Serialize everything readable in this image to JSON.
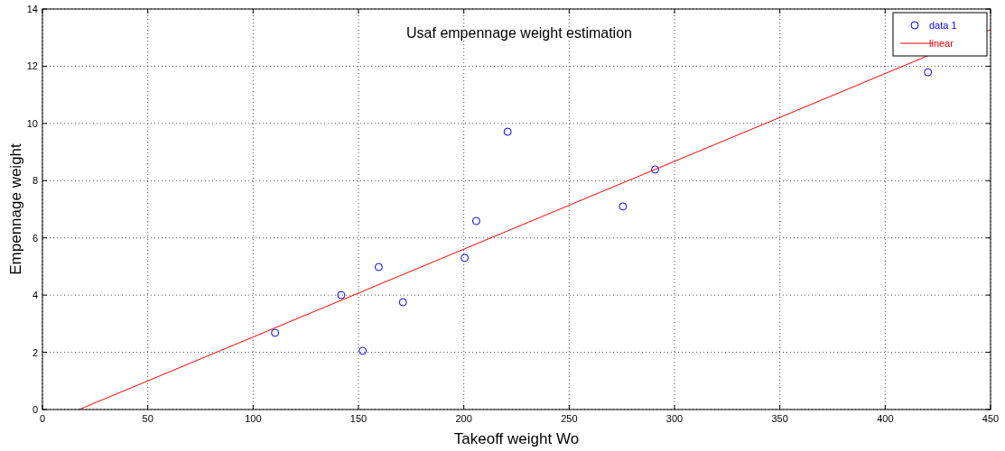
{
  "chart_data": {
    "type": "scatter",
    "title": "Usaf empennage weight estimation",
    "xlabel": "Takeoff weight Wo",
    "ylabel": "Empennage weight",
    "series": [
      {
        "name": "data 1",
        "color": "#0000ff",
        "marker": "circle",
        "x": [
          110.4,
          141.8,
          152,
          159.6,
          171.1,
          200.4,
          205.9,
          220.8,
          275.5,
          290.8,
          420.3
        ],
        "values": [
          2.68,
          4.0,
          2.05,
          4.98,
          3.75,
          5.3,
          6.59,
          9.71,
          7.1,
          8.39,
          11.79
        ]
      },
      {
        "name": "linear",
        "type": "line",
        "color": "#ff0000",
        "marker": "none",
        "line_style": "solid",
        "x": [
          17.4,
          450
        ],
        "values": [
          0,
          13.28
        ]
      }
    ],
    "xlim": [
      0,
      450
    ],
    "xticks": [
      0,
      50,
      100,
      150,
      200,
      250,
      300,
      350,
      400,
      450
    ],
    "ylim": [
      0,
      14
    ],
    "yticks": [
      0,
      2,
      4,
      6,
      8,
      10,
      12,
      14
    ],
    "grid": true,
    "legend": "top right"
  }
}
